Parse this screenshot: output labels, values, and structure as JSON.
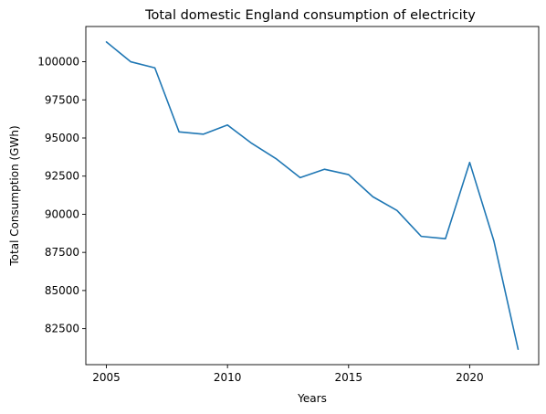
{
  "chart_data": {
    "type": "line",
    "title": "Total domestic England consumption of electricity",
    "xlabel": "Years",
    "ylabel": "Total Consumption (GWh)",
    "x": [
      2005,
      2006,
      2007,
      2008,
      2009,
      2010,
      2011,
      2012,
      2013,
      2014,
      2015,
      2016,
      2017,
      2018,
      2019,
      2020,
      2021,
      2022
    ],
    "series": [
      {
        "values": [
          101300,
          100000,
          99600,
          95400,
          95250,
          95850,
          94650,
          93650,
          92400,
          92950,
          92600,
          91150,
          90250,
          88550,
          88400,
          93400,
          88250,
          81150
        ]
      }
    ],
    "xticks": [
      2005,
      2010,
      2015,
      2020
    ],
    "yticks": [
      82500,
      85000,
      87500,
      90000,
      92500,
      95000,
      97500,
      100000
    ],
    "xlim": [
      2004.15,
      2022.85
    ],
    "ylim": [
      80140,
      102310
    ],
    "grid": false,
    "line_color": "#1f77b4"
  }
}
